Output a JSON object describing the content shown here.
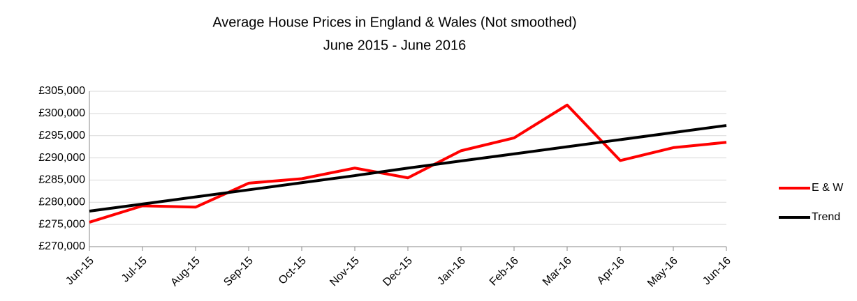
{
  "chart_data": {
    "type": "line",
    "title": "Average House Prices in England & Wales (Not smoothed)",
    "subtitle": "June 2015 - June 2016",
    "categories": [
      "Jun-15",
      "Jul-15",
      "Aug-15",
      "Sep-15",
      "Oct-15",
      "Nov-15",
      "Dec-15",
      "Jan-16",
      "Feb-16",
      "Mar-16",
      "Apr-16",
      "May-16",
      "Jun-16"
    ],
    "series": [
      {
        "name": "E & W",
        "color": "#ff0000",
        "values": [
          275500,
          279200,
          278900,
          284300,
          285300,
          287700,
          285500,
          291600,
          294500,
          301900,
          289400,
          292300,
          293500
        ]
      },
      {
        "name": "Trend",
        "color": "#000000",
        "values": [
          278000,
          279600,
          281200,
          282800,
          284400,
          286000,
          287700,
          289300,
          290900,
          292500,
          294100,
          295700,
          297300
        ]
      }
    ],
    "ylim": [
      270000,
      305000
    ],
    "yticks": [
      {
        "value": 270000,
        "label": "£270,000"
      },
      {
        "value": 275000,
        "label": "£275,000"
      },
      {
        "value": 280000,
        "label": "£280,000"
      },
      {
        "value": 285000,
        "label": "£285,000"
      },
      {
        "value": 290000,
        "label": "£290,000"
      },
      {
        "value": 295000,
        "label": "£295,000"
      },
      {
        "value": 300000,
        "label": "£300,000"
      },
      {
        "value": 305000,
        "label": "£305,000"
      }
    ],
    "grid": true,
    "legend": "right"
  }
}
